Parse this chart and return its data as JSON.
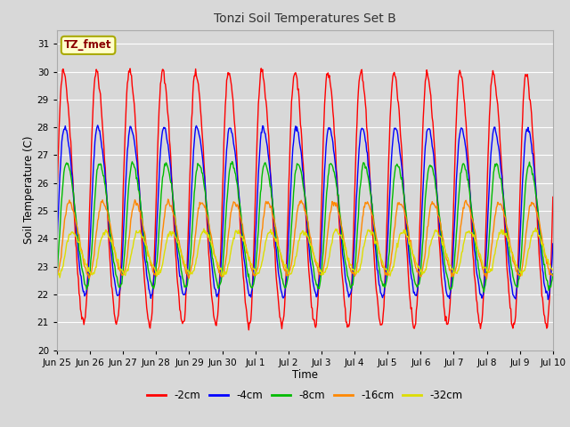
{
  "title": "Tonzi Soil Temperatures Set B",
  "xlabel": "Time",
  "ylabel": "Soil Temperature (C)",
  "ylim": [
    20.0,
    31.5
  ],
  "yticks": [
    20.0,
    21.0,
    22.0,
    23.0,
    24.0,
    25.0,
    26.0,
    27.0,
    28.0,
    29.0,
    30.0,
    31.0
  ],
  "bg_color": "#d8d8d8",
  "plot_bg_color": "#d8d8d8",
  "grid_color": "#ffffff",
  "legend_label": "TZ_fmet",
  "legend_bg": "#ffffcc",
  "legend_border": "#aaaa00",
  "series_names": [
    "-2cm",
    "-4cm",
    "-8cm",
    "-16cm",
    "-32cm"
  ],
  "series_colors": {
    "-2cm": "#ff0000",
    "-4cm": "#0000ff",
    "-8cm": "#00bb00",
    "-16cm": "#ff8800",
    "-32cm": "#dddd00"
  },
  "n_points": 720,
  "t_start": 0,
  "t_end": 15,
  "xtick_positions": [
    0,
    1,
    2,
    3,
    4,
    5,
    6,
    7,
    8,
    9,
    10,
    11,
    12,
    13,
    14,
    15
  ],
  "xtick_labels": [
    "Jun 25",
    "Jun 26",
    "Jun 27",
    "Jun 28",
    "Jun 29",
    "Jun 30",
    "Jul 1",
    "Jul 2",
    "Jul 3",
    "Jul 4",
    "Jul 5",
    "Jul 6",
    "Jul 7",
    "Jul 8",
    "Jul 9",
    "Jul 10"
  ],
  "series_params": {
    "-2cm": {
      "mean": 25.5,
      "amp": 4.5,
      "phase": 0.0,
      "sharpness": 2.5,
      "trend": -0.008
    },
    "-4cm": {
      "mean": 25.0,
      "amp": 3.0,
      "phase": 0.25,
      "sharpness": 2.0,
      "trend": -0.005
    },
    "-8cm": {
      "mean": 24.5,
      "amp": 2.2,
      "phase": 0.6,
      "sharpness": 1.5,
      "trend": -0.003
    },
    "-16cm": {
      "mean": 24.0,
      "amp": 1.3,
      "phase": 1.1,
      "sharpness": 1.2,
      "trend": 0.0
    },
    "-32cm": {
      "mean": 23.5,
      "amp": 0.75,
      "phase": 1.6,
      "sharpness": 1.0,
      "trend": 0.002
    }
  }
}
